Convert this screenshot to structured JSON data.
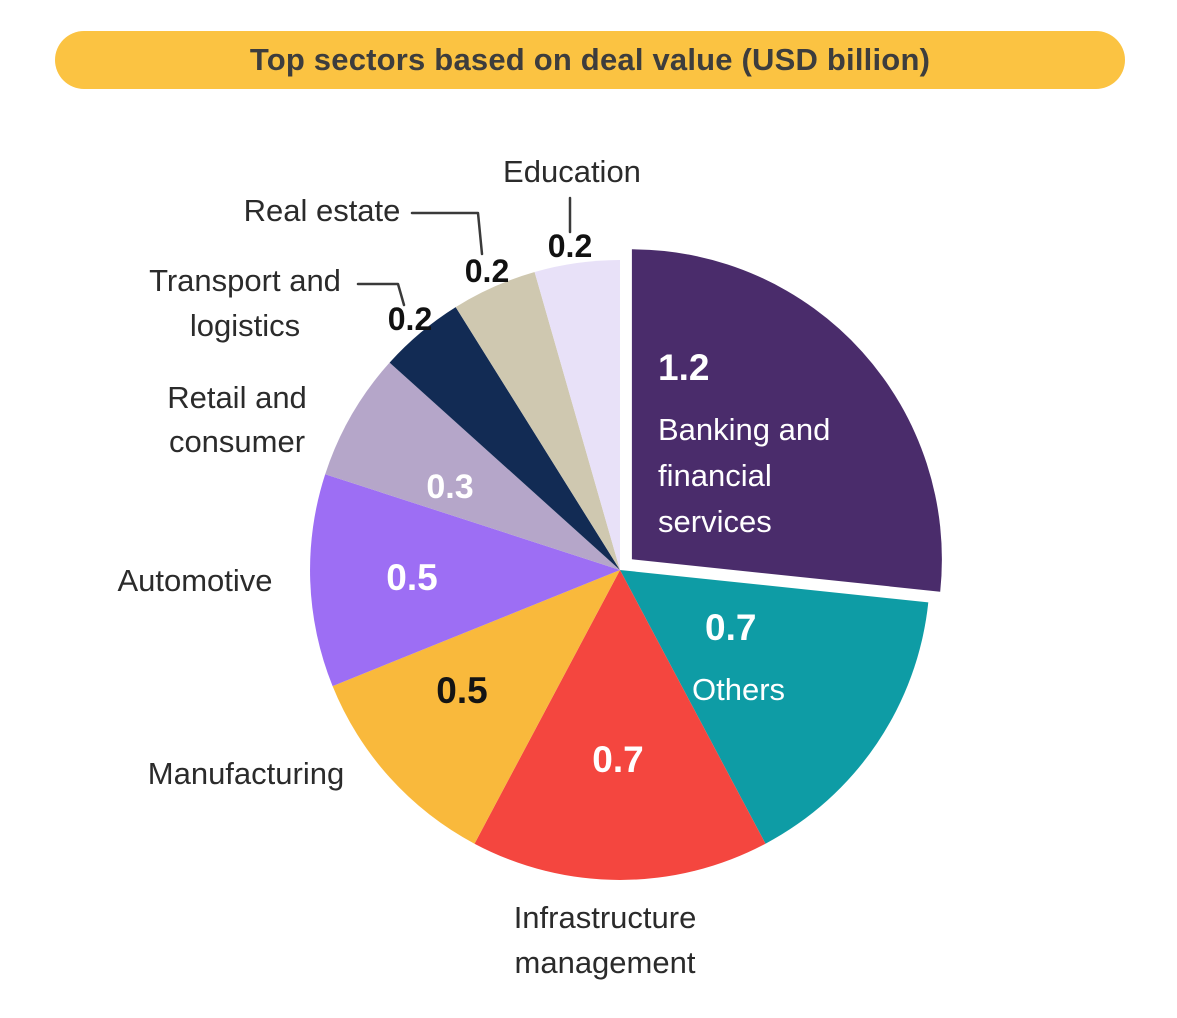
{
  "title_banner": {
    "label": "Top sectors based on deal value (USD billion)",
    "background_color": "#FBC342",
    "text_color": "#3D3D3D"
  },
  "chart_data": {
    "type": "pie",
    "title": "Top sectors based on deal value (USD billion)",
    "unit": "USD billion",
    "total": 4.5,
    "direction": "clockwise",
    "start_angle_deg": 0,
    "slices": [
      {
        "id": "banking",
        "label": "Banking and financial services",
        "label_lines": [
          "Banking and",
          "financial",
          "services"
        ],
        "value": 1.2,
        "value_label": "1.2",
        "color": "#4A2C6B",
        "label_placement": "inside",
        "exploded": true,
        "leader_line": false
      },
      {
        "id": "others",
        "label": "Others",
        "label_lines": [
          "Others"
        ],
        "value": 0.7,
        "value_label": "0.7",
        "color": "#0E9CA5",
        "label_placement": "inside",
        "exploded": false,
        "leader_line": false
      },
      {
        "id": "infrastructure-management",
        "label": "Infrastructure management",
        "label_lines": [
          "Infrastructure",
          "management"
        ],
        "value": 0.7,
        "value_label": "0.7",
        "color": "#F4463F",
        "label_placement": "outside",
        "exploded": false,
        "leader_line": false
      },
      {
        "id": "manufacturing",
        "label": "Manufacturing",
        "label_lines": [
          "Manufacturing"
        ],
        "value": 0.5,
        "value_label": "0.5",
        "color": "#F9B93C",
        "label_placement": "outside",
        "exploded": false,
        "leader_line": false
      },
      {
        "id": "automotive",
        "label": "Automotive",
        "label_lines": [
          "Automotive"
        ],
        "value": 0.5,
        "value_label": "0.5",
        "color": "#9D6EF4",
        "label_placement": "outside",
        "exploded": false,
        "leader_line": false
      },
      {
        "id": "retail-and-consumer",
        "label": "Retail and consumer",
        "label_lines": [
          "Retail and",
          "consumer"
        ],
        "value": 0.3,
        "value_label": "0.3",
        "color": "#B5A6C9",
        "label_placement": "outside",
        "exploded": false,
        "leader_line": false
      },
      {
        "id": "transport-and-logistics",
        "label": "Transport and logistics",
        "label_lines": [
          "Transport and",
          "logistics"
        ],
        "value": 0.2,
        "value_label": "0.2",
        "color": "#122B54",
        "label_placement": "outside",
        "exploded": false,
        "leader_line": true
      },
      {
        "id": "real-estate",
        "label": "Real estate",
        "label_lines": [
          "Real estate"
        ],
        "value": 0.2,
        "value_label": "0.2",
        "color": "#CFC8B0",
        "label_placement": "outside",
        "exploded": false,
        "leader_line": true
      },
      {
        "id": "education",
        "label": "Education",
        "label_lines": [
          "Education"
        ],
        "value": 0.2,
        "value_label": "0.2",
        "color": "#E8E1F8",
        "label_placement": "outside",
        "exploded": false,
        "leader_line": true
      }
    ]
  }
}
